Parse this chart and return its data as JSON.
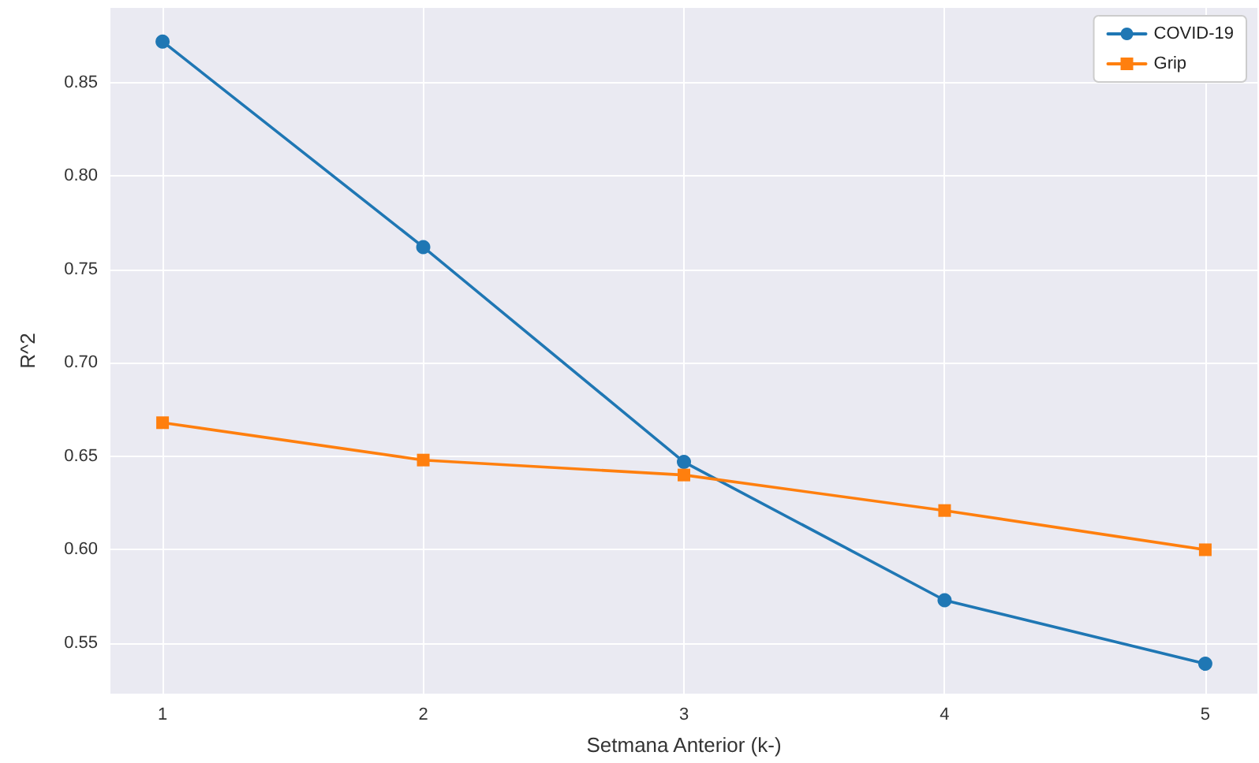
{
  "chart_data": {
    "type": "line",
    "xlabel": "Setmana Anterior (k-)",
    "ylabel": "R^2",
    "x": [
      1,
      2,
      3,
      4,
      5
    ],
    "series": [
      {
        "name": "COVID-19",
        "color": "#1f77b4",
        "marker": "circle",
        "values": [
          0.872,
          0.762,
          0.647,
          0.573,
          0.539
        ]
      },
      {
        "name": "Grip",
        "color": "#ff7f0e",
        "marker": "square",
        "values": [
          0.668,
          0.648,
          0.64,
          0.621,
          0.6
        ]
      }
    ],
    "xlim": [
      0.8,
      5.2
    ],
    "xticks": [
      1,
      2,
      3,
      4,
      5
    ],
    "ylim": [
      0.523,
      0.89
    ],
    "yticks": [
      {
        "value": 0.55,
        "label": "0.55"
      },
      {
        "value": 0.6,
        "label": "0.60"
      },
      {
        "value": 0.65,
        "label": "0.65"
      },
      {
        "value": 0.7,
        "label": "0.70"
      },
      {
        "value": 0.75,
        "label": "0.75"
      },
      {
        "value": 0.8,
        "label": "0.80"
      },
      {
        "value": 0.85,
        "label": "0.85"
      }
    ],
    "grid": true,
    "legend": "top right",
    "line_style": "solid"
  }
}
